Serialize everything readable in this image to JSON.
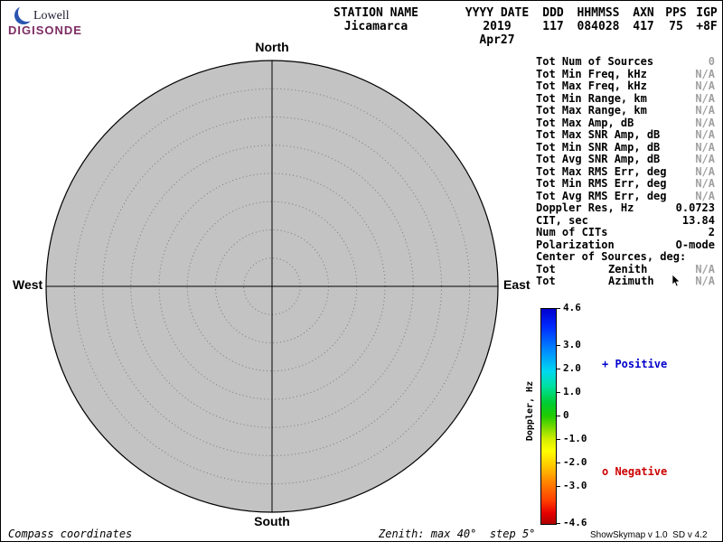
{
  "logo": {
    "brand": "Lowell",
    "product": "DIGISONDE"
  },
  "header": {
    "columns": [
      {
        "label": "STATION NAME",
        "value": "Jicamarca"
      },
      {
        "label": "YYYY DATE",
        "value": "2019 Apr27"
      },
      {
        "label": "DDD",
        "value": "117"
      },
      {
        "label": "HHMMSS",
        "value": "084028"
      },
      {
        "label": "AXN",
        "value": "417"
      },
      {
        "label": "PPS",
        "value": "75"
      },
      {
        "label": "IGP",
        "value": "+8F"
      }
    ]
  },
  "polar": {
    "compass": {
      "north": "North",
      "south": "South",
      "west": "West",
      "east": "East"
    },
    "zenith_max_deg": 40,
    "zenith_step_deg": 5,
    "fill_color": "#c3c3c3",
    "sources_plotted": 0
  },
  "stats": {
    "rows": [
      {
        "label": "Tot Num of Sources",
        "value": "0",
        "na": true
      },
      {
        "label": "Tot Min Freq, kHz",
        "value": "N/A",
        "na": true
      },
      {
        "label": "Tot Max Freq, kHz",
        "value": "N/A",
        "na": true
      },
      {
        "label": "Tot Min Range, km",
        "value": "N/A",
        "na": true
      },
      {
        "label": "Tot Max Range, km",
        "value": "N/A",
        "na": true
      },
      {
        "label": "Tot Max Amp, dB",
        "value": "N/A",
        "na": true
      },
      {
        "label": "Tot Max SNR Amp, dB",
        "value": "N/A",
        "na": true
      },
      {
        "label": "Tot Min SNR Amp, dB",
        "value": "N/A",
        "na": true
      },
      {
        "label": "Tot Avg SNR Amp, dB",
        "value": "N/A",
        "na": true
      },
      {
        "label": "Tot Max RMS Err, deg",
        "value": "N/A",
        "na": true
      },
      {
        "label": "Tot Min RMS Err, deg",
        "value": "N/A",
        "na": true
      },
      {
        "label": "Tot Avg RMS Err, deg",
        "value": "N/A",
        "na": true
      },
      {
        "label": "Doppler Res, Hz",
        "value": "0.0723",
        "na": false
      },
      {
        "label": "CIT, sec",
        "value": "13.84",
        "na": false
      },
      {
        "label": "Num of CITs",
        "value": "2",
        "na": false
      },
      {
        "label": "Polarization",
        "value": "O-mode",
        "na": false
      },
      {
        "label": "Center of Sources, deg:",
        "value": "",
        "na": false
      },
      {
        "label": "Tot",
        "mid": "Zenith",
        "value": "N/A",
        "na": true
      },
      {
        "label": "Tot",
        "mid": "Azimuth",
        "value": "N/A",
        "na": true
      }
    ]
  },
  "colorbar": {
    "title": "Doppler, Hz",
    "max": 4.6,
    "min": -4.6,
    "ticks": [
      {
        "value": 4.6,
        "label": "4.6"
      },
      {
        "value": 3.0,
        "label": "3.0"
      },
      {
        "value": 2.0,
        "label": "2.0"
      },
      {
        "value": 1.0,
        "label": "1.0"
      },
      {
        "value": 0,
        "label": "0"
      },
      {
        "value": -1.0,
        "label": "-1.0"
      },
      {
        "value": -2.0,
        "label": "-2.0"
      },
      {
        "value": -3.0,
        "label": "-3.0"
      },
      {
        "value": -4.6,
        "label": "-4.6"
      }
    ],
    "gradient": [
      "#0000cd 0%",
      "#0028ff 8%",
      "#0090ff 20%",
      "#00d8f0 29%",
      "#00e0a0 36%",
      "#00cc30 44%",
      "#22cc00 50%",
      "#88dd00 56%",
      "#d8ee00 61%",
      "#ffff00 66%",
      "#ffc000 74%",
      "#ff8000 81%",
      "#ff4000 89%",
      "#e60000 95%",
      "#b00000 100%"
    ]
  },
  "legend": {
    "positive": {
      "marker": "+",
      "label": "Positive",
      "color": "#0000cc"
    },
    "negative": {
      "marker": "o",
      "label": "Negative",
      "color": "#cc0000"
    }
  },
  "footer": {
    "left": "Compass coordinates",
    "center": "Zenith: max 40°  step 5°",
    "right": "ShowSkymap v 1.0  SD v 4.2"
  }
}
